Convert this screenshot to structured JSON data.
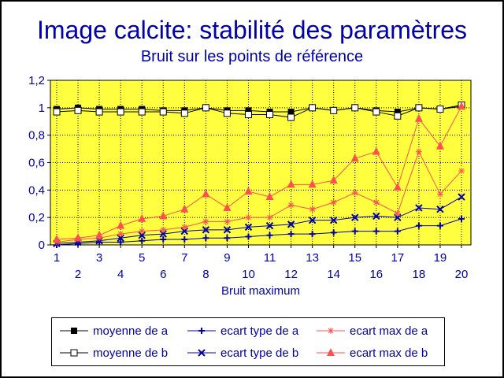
{
  "chart_data": {
    "type": "line",
    "title": "Image calcite: stabilité des paramètres",
    "subtitle": "Bruit sur les points de référence",
    "xlabel": "Bruit maximum",
    "ylabel": "",
    "x": [
      1,
      2,
      3,
      4,
      5,
      6,
      7,
      8,
      9,
      10,
      11,
      12,
      13,
      14,
      15,
      16,
      17,
      18,
      19,
      20
    ],
    "x_tick_labels_odd": [
      "1",
      "3",
      "5",
      "7",
      "9",
      "11",
      "13",
      "15",
      "17",
      "19"
    ],
    "x_tick_labels_even": [
      "2",
      "4",
      "6",
      "8",
      "10",
      "12",
      "14",
      "16",
      "18",
      "20"
    ],
    "ylim": [
      0,
      1.2
    ],
    "y_tick_labels": [
      "0",
      "0,2",
      "0,4",
      "0,6",
      "0,8",
      "1",
      "1,2"
    ],
    "y_ticks": [
      0,
      0.2,
      0.4,
      0.6,
      0.8,
      1.0,
      1.2
    ],
    "grid": true,
    "plot_background": "#ffff40",
    "legend_placement": "bottom",
    "series": [
      {
        "name": "moyenne de a",
        "color": "#000000",
        "marker": "filled-square",
        "values": [
          0.99,
          1.0,
          0.99,
          0.99,
          0.99,
          0.98,
          0.98,
          1.0,
          0.98,
          0.98,
          0.97,
          0.97,
          1.0,
          0.98,
          1.0,
          0.98,
          0.97,
          1.0,
          0.99,
          1.01
        ]
      },
      {
        "name": "moyenne de b",
        "color": "#000000",
        "marker": "open-square",
        "values": [
          0.97,
          0.98,
          0.97,
          0.97,
          0.97,
          0.97,
          0.96,
          1.0,
          0.96,
          0.95,
          0.95,
          0.93,
          1.0,
          0.98,
          1.0,
          0.97,
          0.94,
          1.0,
          0.99,
          1.02
        ]
      },
      {
        "name": "ecart type de a",
        "color": "#0000a8",
        "marker": "plus",
        "values": [
          0.0,
          0.01,
          0.02,
          0.02,
          0.03,
          0.04,
          0.04,
          0.05,
          0.05,
          0.06,
          0.07,
          0.08,
          0.08,
          0.09,
          0.1,
          0.1,
          0.1,
          0.14,
          0.14,
          0.19
        ]
      },
      {
        "name": "ecart type de b",
        "color": "#0000a8",
        "marker": "x",
        "values": [
          0.01,
          0.02,
          0.03,
          0.05,
          0.07,
          0.08,
          0.1,
          0.11,
          0.11,
          0.13,
          0.14,
          0.15,
          0.18,
          0.18,
          0.2,
          0.21,
          0.2,
          0.27,
          0.26,
          0.35
        ]
      },
      {
        "name": "ecart max de a",
        "color": "#ff5050",
        "marker": "star",
        "values": [
          0.02,
          0.04,
          0.05,
          0.08,
          0.1,
          0.11,
          0.13,
          0.17,
          0.17,
          0.2,
          0.2,
          0.29,
          0.26,
          0.31,
          0.38,
          0.31,
          0.23,
          0.68,
          0.37,
          0.54
        ]
      },
      {
        "name": "ecart max de b",
        "color": "#ff5050",
        "marker": "triangle",
        "values": [
          0.04,
          0.05,
          0.07,
          0.14,
          0.19,
          0.21,
          0.26,
          0.37,
          0.27,
          0.39,
          0.35,
          0.44,
          0.44,
          0.47,
          0.63,
          0.68,
          0.42,
          0.92,
          0.72,
          1.01
        ]
      }
    ]
  }
}
